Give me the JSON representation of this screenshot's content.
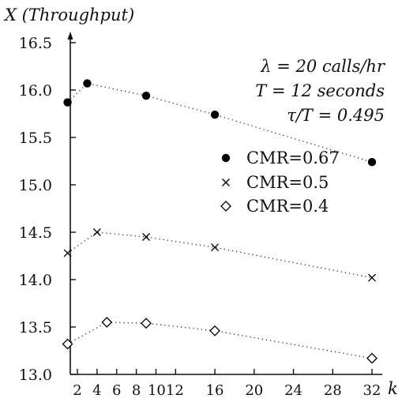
{
  "chart_data": {
    "type": "line",
    "ylabel": "X (Throughput)",
    "xlabel": "k",
    "xlim": [
      0,
      33
    ],
    "ylim": [
      13.0,
      16.6
    ],
    "xticks": [
      "2",
      "4",
      "6",
      "8",
      "1012",
      "16",
      "20",
      "24",
      "28",
      "32"
    ],
    "yticks": [
      "13.0",
      "13.5",
      "14.0",
      "14.5",
      "15.0",
      "15.5",
      "16.0",
      "16.5"
    ],
    "annotations": [
      "λ = 20 calls/hr",
      "T = 12 seconds",
      "τ/T = 0.495"
    ],
    "grid": false,
    "legend_position": "right-middle",
    "series": [
      {
        "name": "CMR=0.67",
        "marker": "filled-circle",
        "x": [
          1,
          3,
          9,
          16,
          32
        ],
        "values": [
          15.87,
          16.07,
          15.94,
          15.74,
          15.24
        ]
      },
      {
        "name": "CMR=0.5",
        "marker": "cross",
        "x": [
          1,
          4,
          9,
          16,
          32
        ],
        "values": [
          14.28,
          14.5,
          14.45,
          14.34,
          14.02
        ]
      },
      {
        "name": "CMR=0.4",
        "marker": "diamond",
        "x": [
          1,
          5,
          9,
          16,
          32
        ],
        "values": [
          13.32,
          13.55,
          13.54,
          13.46,
          13.17
        ]
      }
    ]
  }
}
